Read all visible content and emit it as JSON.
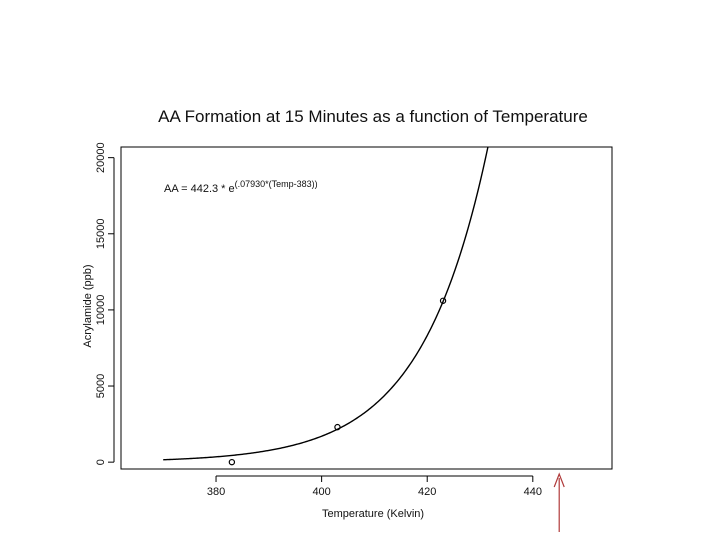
{
  "chart_data": {
    "type": "scatter",
    "title": "AA Formation at 15 Minutes as a function of Temperature",
    "xlabel": "Temperature (Kelvin)",
    "ylabel": "Acrylamide (ppb)",
    "xlim": [
      362,
      455
    ],
    "ylim": [
      -450,
      20700
    ],
    "xticks": [
      380,
      400,
      420,
      440
    ],
    "yticks": [
      0,
      5000,
      10000,
      15000,
      20000
    ],
    "grid": false,
    "points": [
      {
        "x": 383,
        "y": 0
      },
      {
        "x": 403,
        "y": 2300
      },
      {
        "x": 423,
        "y": 10600
      }
    ],
    "fit": {
      "type": "exponential",
      "coefficient": 442.3,
      "rate": 0.0793,
      "offset": 383,
      "x_start": 370,
      "equation_prefix": "AA = 442.3 * e",
      "equation_exponent": "(.07930*(Temp-383))"
    },
    "annotation_arrow": {
      "x": 445,
      "color": "#b03a3a"
    }
  }
}
